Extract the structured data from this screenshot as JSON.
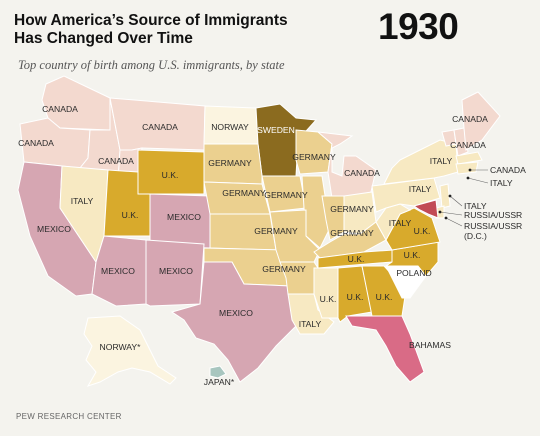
{
  "header": {
    "title_line1": "How America’s Source of Immigrants",
    "title_line2": "Has Changed Over Time",
    "year": "1930",
    "subtitle": "Top country of birth among U.S. immigrants, by state"
  },
  "legend_colors": {
    "canada": "#f3d9cf",
    "norway": "#fbf4e0",
    "sweden": "#8b6b1f",
    "germany": "#ebd08f",
    "italy": "#f7e9c2",
    "uk": "#d8aa2c",
    "mexico": "#d6a6b2",
    "russia_ussr": "#c24a55",
    "poland": "#ffffff",
    "bahamas": "#d96b86",
    "japan": "#a8c6bf"
  },
  "regions": {
    "washington": "CANADA",
    "idaho_north": "CANADA",
    "montana": "CANADA",
    "north_dakota": "NORWAY",
    "minnesota": "SWEDEN",
    "oregon": "CANADA",
    "idaho": "CANADA",
    "wyoming": "U.K.",
    "south_dakota": "GERMANY",
    "wisconsin": "GERMANY",
    "michigan": "CANADA",
    "nevada": "ITALY",
    "utah": "U.K.",
    "colorado": "MEXICO",
    "nebraska": "GERMANY",
    "iowa": "GERMANY",
    "illinois": "GERMANY",
    "indiana": "GERMANY",
    "ohio": "ITALY",
    "kansas": "GERMANY",
    "missouri": "GERMANY",
    "kentucky": "GERMANY",
    "west_virginia": "ITALY",
    "virginia": "U.K.",
    "california": "MEXICO",
    "arizona": "MEXICO",
    "new_mexico": "MEXICO",
    "oklahoma": "GERMANY",
    "tennessee": "U.K.",
    "north_carolina": "U.K.",
    "south_carolina": "POLAND",
    "texas": "MEXICO",
    "mississippi": "U.K.",
    "alabama": "U.K.",
    "georgia": "U.K.",
    "louisiana": "ITALY",
    "florida": "BAHAMAS",
    "maine": "CANADA",
    "vermont": "CANADA",
    "new_york": "ITALY",
    "pennsylvania": "ITALY",
    "alaska": "NORWAY*",
    "hawaii": "JAPAN*"
  },
  "callouts": {
    "nh": "CANADA",
    "ma": "ITALY",
    "nj": "ITALY",
    "md": "RUSSIA/USSR",
    "dc_line1": "RUSSIA/USSR",
    "dc_line2": "(D.C.)"
  },
  "source": "PEW RESEARCH CENTER"
}
